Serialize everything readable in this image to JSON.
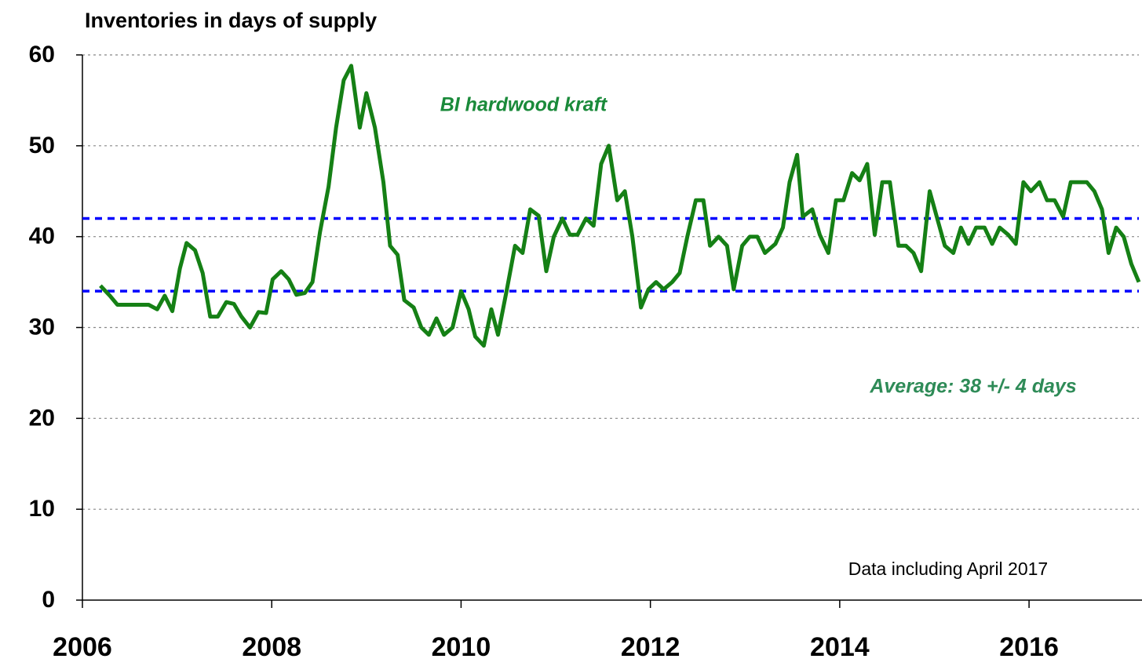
{
  "chart_data": {
    "type": "line",
    "title": "Inventories in days of supply",
    "annotations": [
      {
        "text": "BI hardwood kraft",
        "color": "#1a8a3a"
      },
      {
        "text": "Average: 38 +/- 4 days",
        "color": "#2e8b57"
      },
      {
        "text": "Data including April 2017",
        "color": "#000000"
      }
    ],
    "xlim": [
      2006,
      2017.16
    ],
    "xticks": [
      2006,
      2008,
      2010,
      2012,
      2014,
      2016
    ],
    "ylim": [
      0,
      60
    ],
    "yticks": [
      0,
      10,
      20,
      30,
      40,
      50,
      60
    ],
    "grid": true,
    "reference_lines": [
      {
        "value": 34,
        "color": "#0000ff"
      },
      {
        "value": 42,
        "color": "#0000ff"
      }
    ],
    "series": [
      {
        "color": "#158015",
        "x": [
          2006.19,
          2006.29,
          2006.37,
          2006.46,
          2006.54,
          2006.62,
          2006.7,
          2006.79,
          2006.87,
          2006.95,
          2007.03,
          2007.1,
          2007.19,
          2007.27,
          2007.35,
          2007.43,
          2007.52,
          2007.6,
          2007.68,
          2007.77,
          2007.86,
          2007.94,
          2008.01,
          2008.1,
          2008.18,
          2008.26,
          2008.35,
          2008.43,
          2008.51,
          2008.6,
          2008.68,
          2008.76,
          2008.84,
          2008.93,
          2009.0,
          2009.09,
          2009.18,
          2009.25,
          2009.33,
          2009.4,
          2009.5,
          2009.58,
          2009.66,
          2009.74,
          2009.82,
          2009.91,
          2010.0,
          2010.08,
          2010.15,
          2010.24,
          2010.32,
          2010.39,
          2010.49,
          2010.57,
          2010.65,
          2010.73,
          2010.82,
          2010.9,
          2010.98,
          2011.07,
          2011.15,
          2011.23,
          2011.32,
          2011.4,
          2011.48,
          2011.56,
          2011.65,
          2011.73,
          2011.81,
          2011.9,
          2011.98,
          2012.06,
          2012.14,
          2012.23,
          2012.31,
          2012.39,
          2012.48,
          2012.56,
          2012.63,
          2012.72,
          2012.81,
          2012.88,
          2012.97,
          2013.05,
          2013.13,
          2013.21,
          2013.32,
          2013.4,
          2013.47,
          2013.55,
          2013.61,
          2013.71,
          2013.79,
          2013.88,
          2013.96,
          2014.04,
          2014.13,
          2014.21,
          2014.29,
          2014.37,
          2014.45,
          2014.53,
          2014.62,
          2014.7,
          2014.78,
          2014.86,
          2014.95,
          2015.03,
          2015.11,
          2015.2,
          2015.28,
          2015.36,
          2015.44,
          2015.53,
          2015.61,
          2015.69,
          2015.78,
          2015.86,
          2015.94,
          2016.02,
          2016.11,
          2016.19,
          2016.27,
          2016.36,
          2016.44,
          2016.52,
          2016.61,
          2016.69,
          2016.77,
          2016.84,
          2016.92,
          2017.0,
          2017.08,
          2017.16
        ],
        "values": [
          34.6,
          33.5,
          32.5,
          32.5,
          32.5,
          32.5,
          32.5,
          32,
          33.5,
          31.8,
          36.5,
          39.3,
          38.5,
          36,
          31.2,
          31.2,
          32.8,
          32.6,
          31.2,
          30,
          31.7,
          31.6,
          35.3,
          36.2,
          35.3,
          33.6,
          33.8,
          35,
          40.5,
          45.5,
          52,
          57.2,
          58.8,
          52,
          55.8,
          52,
          46,
          39,
          38,
          33,
          32.2,
          30,
          29.2,
          31,
          29.2,
          30,
          34,
          32,
          29,
          28,
          32,
          29.2,
          34.5,
          39,
          38.2,
          43,
          42.3,
          36.2,
          40,
          42,
          40.2,
          40.2,
          42,
          41.2,
          48,
          50,
          44,
          45,
          40,
          32.2,
          34.2,
          35,
          34.2,
          35,
          36,
          40,
          44,
          44,
          39,
          40,
          39,
          34.2,
          39,
          40,
          40,
          38.2,
          39.2,
          41,
          46,
          49,
          42.2,
          43,
          40.2,
          38.2,
          44,
          44,
          47,
          46.2,
          48,
          40.2,
          46,
          46,
          39,
          39,
          38.2,
          36.2,
          45,
          42,
          39,
          38.2,
          41,
          39.2,
          41,
          41,
          39.2,
          41,
          40.2,
          39.2,
          46,
          45,
          46,
          44,
          44,
          42.2,
          46,
          46,
          46,
          45,
          43,
          38.2,
          41,
          40,
          37,
          35
        ]
      }
    ]
  }
}
